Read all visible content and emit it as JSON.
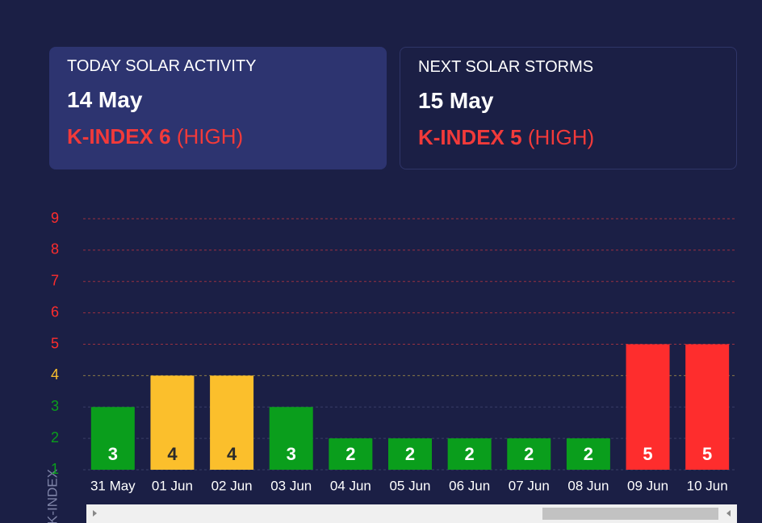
{
  "cards": [
    {
      "title": "TODAY SOLAR ACTIVITY",
      "date": "14 May",
      "index": "K-INDEX 6",
      "level": "(HIGH)"
    },
    {
      "title": "NEXT SOLAR STORMS",
      "date": "15 May",
      "index": "K-INDEX 5",
      "level": "(HIGH)"
    }
  ],
  "chart_data": {
    "type": "bar",
    "y_label": "K-INDEX",
    "categories": [
      "31 May",
      "01 Jun",
      "02 Jun",
      "03 Jun",
      "04 Jun",
      "05 Jun",
      "06 Jun",
      "07 Jun",
      "08 Jun",
      "09 Jun",
      "10 Jun"
    ],
    "values": [
      3,
      4,
      4,
      3,
      2,
      2,
      2,
      2,
      2,
      5,
      5
    ],
    "colors": [
      "#0a9e1c",
      "#fbbf2c",
      "#fbbf2c",
      "#0a9e1c",
      "#0a9e1c",
      "#0a9e1c",
      "#0a9e1c",
      "#0a9e1c",
      "#0a9e1c",
      "#fe2d2d",
      "#fe2d2d"
    ],
    "label_colors": [
      "#ffffff",
      "#2a2a2a",
      "#2a2a2a",
      "#ffffff",
      "#ffffff",
      "#ffffff",
      "#ffffff",
      "#ffffff",
      "#ffffff",
      "#ffffff",
      "#ffffff"
    ],
    "ylim": [
      1,
      9
    ],
    "yticks": [
      1,
      2,
      3,
      4,
      5,
      6,
      7,
      8,
      9
    ],
    "ytick_colors": [
      "#0a9e1c",
      "#0a9e1c",
      "#0a9e1c",
      "#fbbf2c",
      "#fe2d2d",
      "#fe2d2d",
      "#fe2d2d",
      "#fe2d2d",
      "#fe2d2d"
    ],
    "grid_colors": [
      "#3a3f66",
      "#3a3f66",
      "#3a3f66",
      "#8a7a45",
      "#9a3040",
      "#9a3040",
      "#9a3040",
      "#9a3040",
      "#9a3040"
    ],
    "grid": true
  }
}
